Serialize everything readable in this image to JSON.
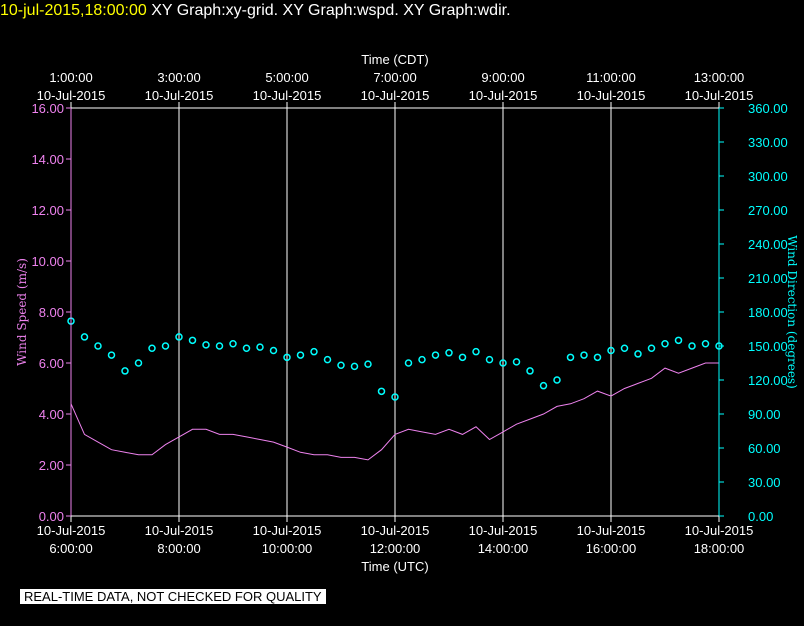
{
  "header": {
    "timestamp": "10-jul-2015,18:00:00",
    "titles": "XY Graph:xy-grid.  XY Graph:wspd.  XY Graph:wdir."
  },
  "note": "REAL-TIME DATA, NOT CHECKED FOR QUALITY",
  "colors": {
    "speed": "#ee82ee",
    "direction": "#00ffff",
    "axes": "#ffffff",
    "grid": "#ffffff",
    "header": "#ffff00"
  },
  "chart_data": {
    "type": "line",
    "top_axis_title": "Time (CDT)",
    "bottom_axis_title": "Time (UTC)",
    "left_axis_title": "Wind Speed (m/s)",
    "right_axis_title": "Wind Direction (degrees)",
    "x_range_utc_hours": [
      6,
      18
    ],
    "top_ticks": [
      {
        "t": 6,
        "line1": "1:00:00",
        "line2": "10-Jul-2015"
      },
      {
        "t": 8,
        "line1": "3:00:00",
        "line2": "10-Jul-2015"
      },
      {
        "t": 10,
        "line1": "5:00:00",
        "line2": "10-Jul-2015"
      },
      {
        "t": 12,
        "line1": "7:00:00",
        "line2": "10-Jul-2015"
      },
      {
        "t": 14,
        "line1": "9:00:00",
        "line2": "10-Jul-2015"
      },
      {
        "t": 16,
        "line1": "11:00:00",
        "line2": "10-Jul-2015"
      },
      {
        "t": 18,
        "line1": "13:00:00",
        "line2": "10-Jul-2015"
      }
    ],
    "bottom_ticks": [
      {
        "t": 6,
        "line1": "10-Jul-2015",
        "line2": "6:00:00"
      },
      {
        "t": 8,
        "line1": "10-Jul-2015",
        "line2": "8:00:00"
      },
      {
        "t": 10,
        "line1": "10-Jul-2015",
        "line2": "10:00:00"
      },
      {
        "t": 12,
        "line1": "10-Jul-2015",
        "line2": "12:00:00"
      },
      {
        "t": 14,
        "line1": "10-Jul-2015",
        "line2": "14:00:00"
      },
      {
        "t": 16,
        "line1": "10-Jul-2015",
        "line2": "16:00:00"
      },
      {
        "t": 18,
        "line1": "10-Jul-2015",
        "line2": "18:00:00"
      }
    ],
    "left_ylim": [
      0,
      16
    ],
    "left_ticks": [
      "0.00",
      "2.00",
      "4.00",
      "6.00",
      "8.00",
      "10.00",
      "12.00",
      "14.00",
      "16.00"
    ],
    "right_ylim": [
      0,
      360
    ],
    "right_ticks": [
      "0.00",
      "30.00",
      "60.00",
      "90.00",
      "120.00",
      "150.00",
      "180.00",
      "210.00",
      "240.00",
      "270.00",
      "300.00",
      "330.00",
      "360.00"
    ],
    "series": [
      {
        "axis": "left",
        "style": "line",
        "x": [
          6.0,
          6.25,
          6.5,
          6.75,
          7.0,
          7.25,
          7.5,
          7.75,
          8.0,
          8.25,
          8.5,
          8.75,
          9.0,
          9.25,
          9.5,
          9.75,
          10.0,
          10.25,
          10.5,
          10.75,
          11.0,
          11.25,
          11.5,
          11.75,
          12.0,
          12.25,
          12.5,
          12.75,
          13.0,
          13.25,
          13.5,
          13.75,
          14.0,
          14.25,
          14.5,
          14.75,
          15.0,
          15.25,
          15.5,
          15.75,
          16.0,
          16.25,
          16.5,
          16.75,
          17.0,
          17.25,
          17.5,
          17.75,
          18.0
        ],
        "y": [
          4.4,
          3.2,
          2.9,
          2.6,
          2.5,
          2.4,
          2.4,
          2.8,
          3.1,
          3.4,
          3.4,
          3.2,
          3.2,
          3.1,
          3.0,
          2.9,
          2.7,
          2.5,
          2.4,
          2.4,
          2.3,
          2.3,
          2.2,
          2.6,
          3.2,
          3.4,
          3.3,
          3.2,
          3.4,
          3.2,
          3.5,
          3.0,
          3.3,
          3.6,
          3.8,
          4.0,
          4.3,
          4.4,
          4.6,
          4.9,
          4.7,
          5.0,
          5.2,
          5.4,
          5.8,
          5.6,
          5.8,
          6.0,
          6.0
        ]
      },
      {
        "axis": "right",
        "style": "markers",
        "x": [
          6.0,
          6.25,
          6.5,
          6.75,
          7.0,
          7.25,
          7.5,
          7.75,
          8.0,
          8.25,
          8.5,
          8.75,
          9.0,
          9.25,
          9.5,
          9.75,
          10.0,
          10.25,
          10.5,
          10.75,
          11.0,
          11.25,
          11.5,
          11.75,
          12.0,
          12.25,
          12.5,
          12.75,
          13.0,
          13.25,
          13.5,
          13.75,
          14.0,
          14.25,
          14.5,
          14.75,
          15.0,
          15.25,
          15.5,
          15.75,
          16.0,
          16.25,
          16.5,
          16.75,
          17.0,
          17.25,
          17.5,
          17.75,
          18.0
        ],
        "y": [
          172,
          158,
          150,
          142,
          128,
          135,
          148,
          150,
          158,
          155,
          151,
          150,
          152,
          148,
          149,
          146,
          140,
          142,
          145,
          138,
          133,
          132,
          134,
          110,
          105,
          135,
          138,
          142,
          144,
          140,
          145,
          138,
          135,
          136,
          128,
          115,
          120,
          140,
          142,
          140,
          146,
          148,
          143,
          148,
          152,
          155,
          150,
          152,
          150
        ]
      }
    ]
  }
}
